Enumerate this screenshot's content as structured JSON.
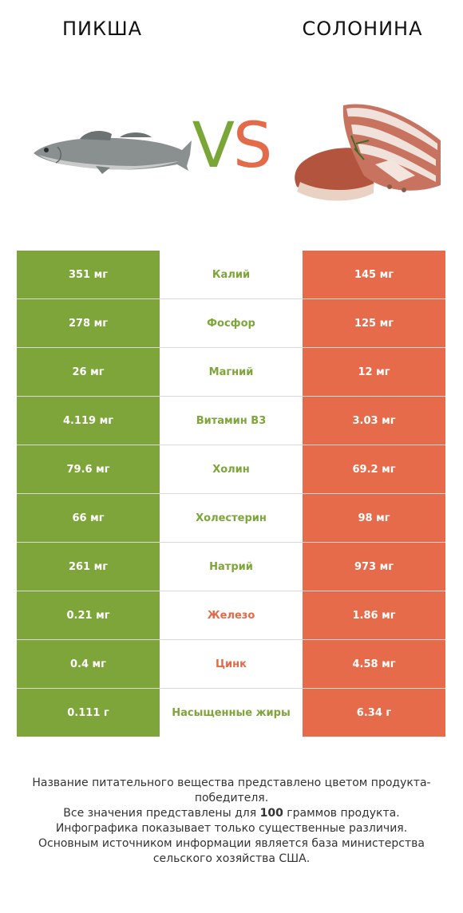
{
  "header": {
    "left_title": "ПИКША",
    "right_title": "СОЛОНИНА",
    "vs_v": "V",
    "vs_s": "S"
  },
  "colors": {
    "left_winner": "#7ea53a",
    "right_winner": "#e56b4b"
  },
  "rows": [
    {
      "left": "351 мг",
      "name": "Калий",
      "right": "145 мг",
      "winner": "left"
    },
    {
      "left": "278 мг",
      "name": "Фосфор",
      "right": "125 мг",
      "winner": "left"
    },
    {
      "left": "26 мг",
      "name": "Магний",
      "right": "12 мг",
      "winner": "left"
    },
    {
      "left": "4.119 мг",
      "name": "Витамин B3",
      "right": "3.03 мг",
      "winner": "left"
    },
    {
      "left": "79.6 мг",
      "name": "Холин",
      "right": "69.2 мг",
      "winner": "left"
    },
    {
      "left": "66 мг",
      "name": "Холестерин",
      "right": "98 мг",
      "winner": "left"
    },
    {
      "left": "261 мг",
      "name": "Натрий",
      "right": "973 мг",
      "winner": "left"
    },
    {
      "left": "0.21 мг",
      "name": "Железо",
      "right": "1.86 мг",
      "winner": "right"
    },
    {
      "left": "0.4 мг",
      "name": "Цинк",
      "right": "4.58 мг",
      "winner": "right"
    },
    {
      "left": "0.111 г",
      "name": "Насыщенные жиры",
      "right": "6.34 г",
      "winner": "left"
    }
  ],
  "footer": {
    "line1": "Название питательного вещества представлено цветом продукта-победителя.",
    "line2_pre": "Все значения представлены для ",
    "line2_bold": "100",
    "line2_post": " граммов продукта.",
    "line3": "Инфографика показывает только существенные различия.",
    "line4": "Основным источником информации является база министерства сельского хозяйства США."
  }
}
